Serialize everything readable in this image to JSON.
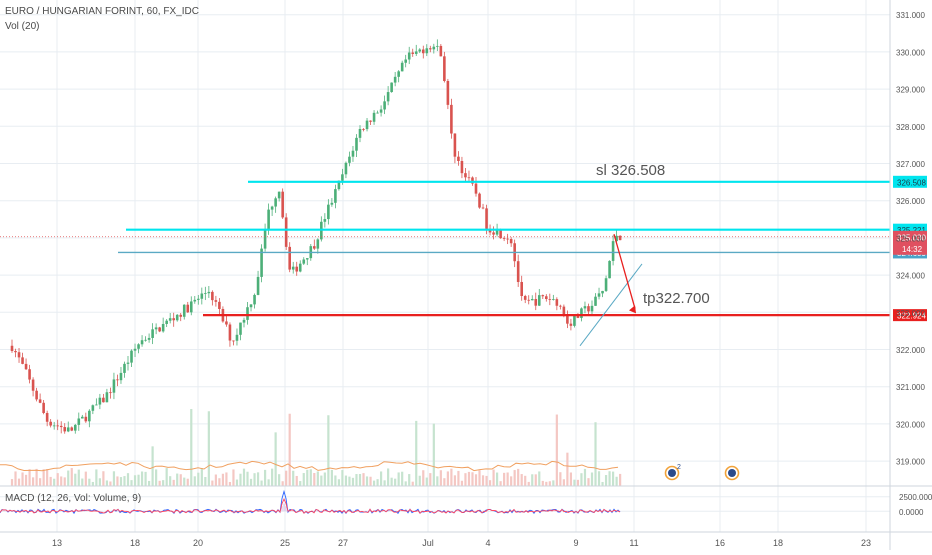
{
  "header": {
    "symbol_line": "EURO / HUNGARIAN FORINT, 60, FX_IDC",
    "volume_label": "Vol (20)",
    "macd_label": "MACD (12, 26, Vol: Volume, 9)"
  },
  "colors": {
    "up": "#4caf78",
    "down": "#d9534f",
    "cyan": "#00e5ee",
    "teal": "#5aa9c4",
    "red_line": "#e8201f",
    "macd_line": "#2962ff",
    "signal_line": "#ff4560",
    "vol_up": "#c6e3cf",
    "vol_down": "#f4c7c3",
    "grid": "#e8edf2",
    "axis_text": "#555555"
  },
  "chart_data": [
    {
      "type": "candlestick",
      "title": "EURO / HUNGARIAN FORINT, 60, FX_IDC",
      "y_axis": {
        "ticks": [
          "331.000",
          "330.000",
          "329.000",
          "328.000",
          "327.000",
          "326.000",
          "325.000",
          "324.000",
          "323.000",
          "322.000",
          "321.000",
          "320.000",
          "319.000"
        ],
        "range": [
          318.2,
          331.2
        ]
      },
      "x_axis": {
        "ticks": [
          "13",
          "18",
          "20",
          "25",
          "27",
          "Jul",
          "4",
          "9",
          "11",
          "16",
          "18",
          "23"
        ]
      },
      "grid": true,
      "price_path": [
        [
          0,
          322.1
        ],
        [
          1,
          321.5
        ],
        [
          3,
          320.1
        ],
        [
          5,
          319.8
        ],
        [
          8,
          320.7
        ],
        [
          11,
          322.2
        ],
        [
          15,
          323.1
        ],
        [
          17,
          323.6
        ],
        [
          19,
          322.2
        ],
        [
          20,
          322.9
        ],
        [
          21,
          323.6
        ],
        [
          22,
          325.6
        ],
        [
          23,
          326.4
        ],
        [
          24,
          324.0
        ],
        [
          26,
          324.8
        ],
        [
          27,
          325.6
        ],
        [
          28,
          326.3
        ],
        [
          30,
          327.9
        ],
        [
          32,
          328.6
        ],
        [
          34,
          329.8
        ],
        [
          36,
          330.2
        ],
        [
          37,
          330.0
        ],
        [
          38,
          327.4
        ],
        [
          39,
          326.7
        ],
        [
          40,
          326.2
        ],
        [
          41,
          325.3
        ],
        [
          43,
          325.0
        ],
        [
          44,
          323.2
        ],
        [
          46,
          323.4
        ],
        [
          47,
          323.3
        ],
        [
          48,
          322.7
        ],
        [
          50,
          323.2
        ],
        [
          51,
          323.6
        ],
        [
          52,
          325.1
        ],
        [
          52.5,
          325.05
        ]
      ],
      "levels": [
        {
          "value": 326.508,
          "label": "326.508",
          "color": "cyan"
        },
        {
          "value": 325.221,
          "label": "325.221",
          "color": "cyan"
        },
        {
          "value": 324.609,
          "label": "324.609",
          "color": "teal"
        },
        {
          "value": 322.924,
          "label": "322.924",
          "color": "red"
        }
      ],
      "current_price": {
        "value": 325.03,
        "label": "325.030",
        "countdown": "14:32"
      },
      "annotations": [
        {
          "text": "sl 326.508",
          "color": "#555555"
        },
        {
          "text": "tp322.700",
          "color": "#555555"
        }
      ],
      "event_markers": [
        {
          "badge": "2"
        },
        {
          "badge": ""
        }
      ]
    },
    {
      "type": "line",
      "title": "MACD (12, 26, Vol: Volume, 9)",
      "y_axis": {
        "ticks": [
          "2500.0000",
          "0.0000"
        ],
        "range": [
          -1500,
          4000
        ]
      },
      "series": [],
      "grid": true
    }
  ]
}
